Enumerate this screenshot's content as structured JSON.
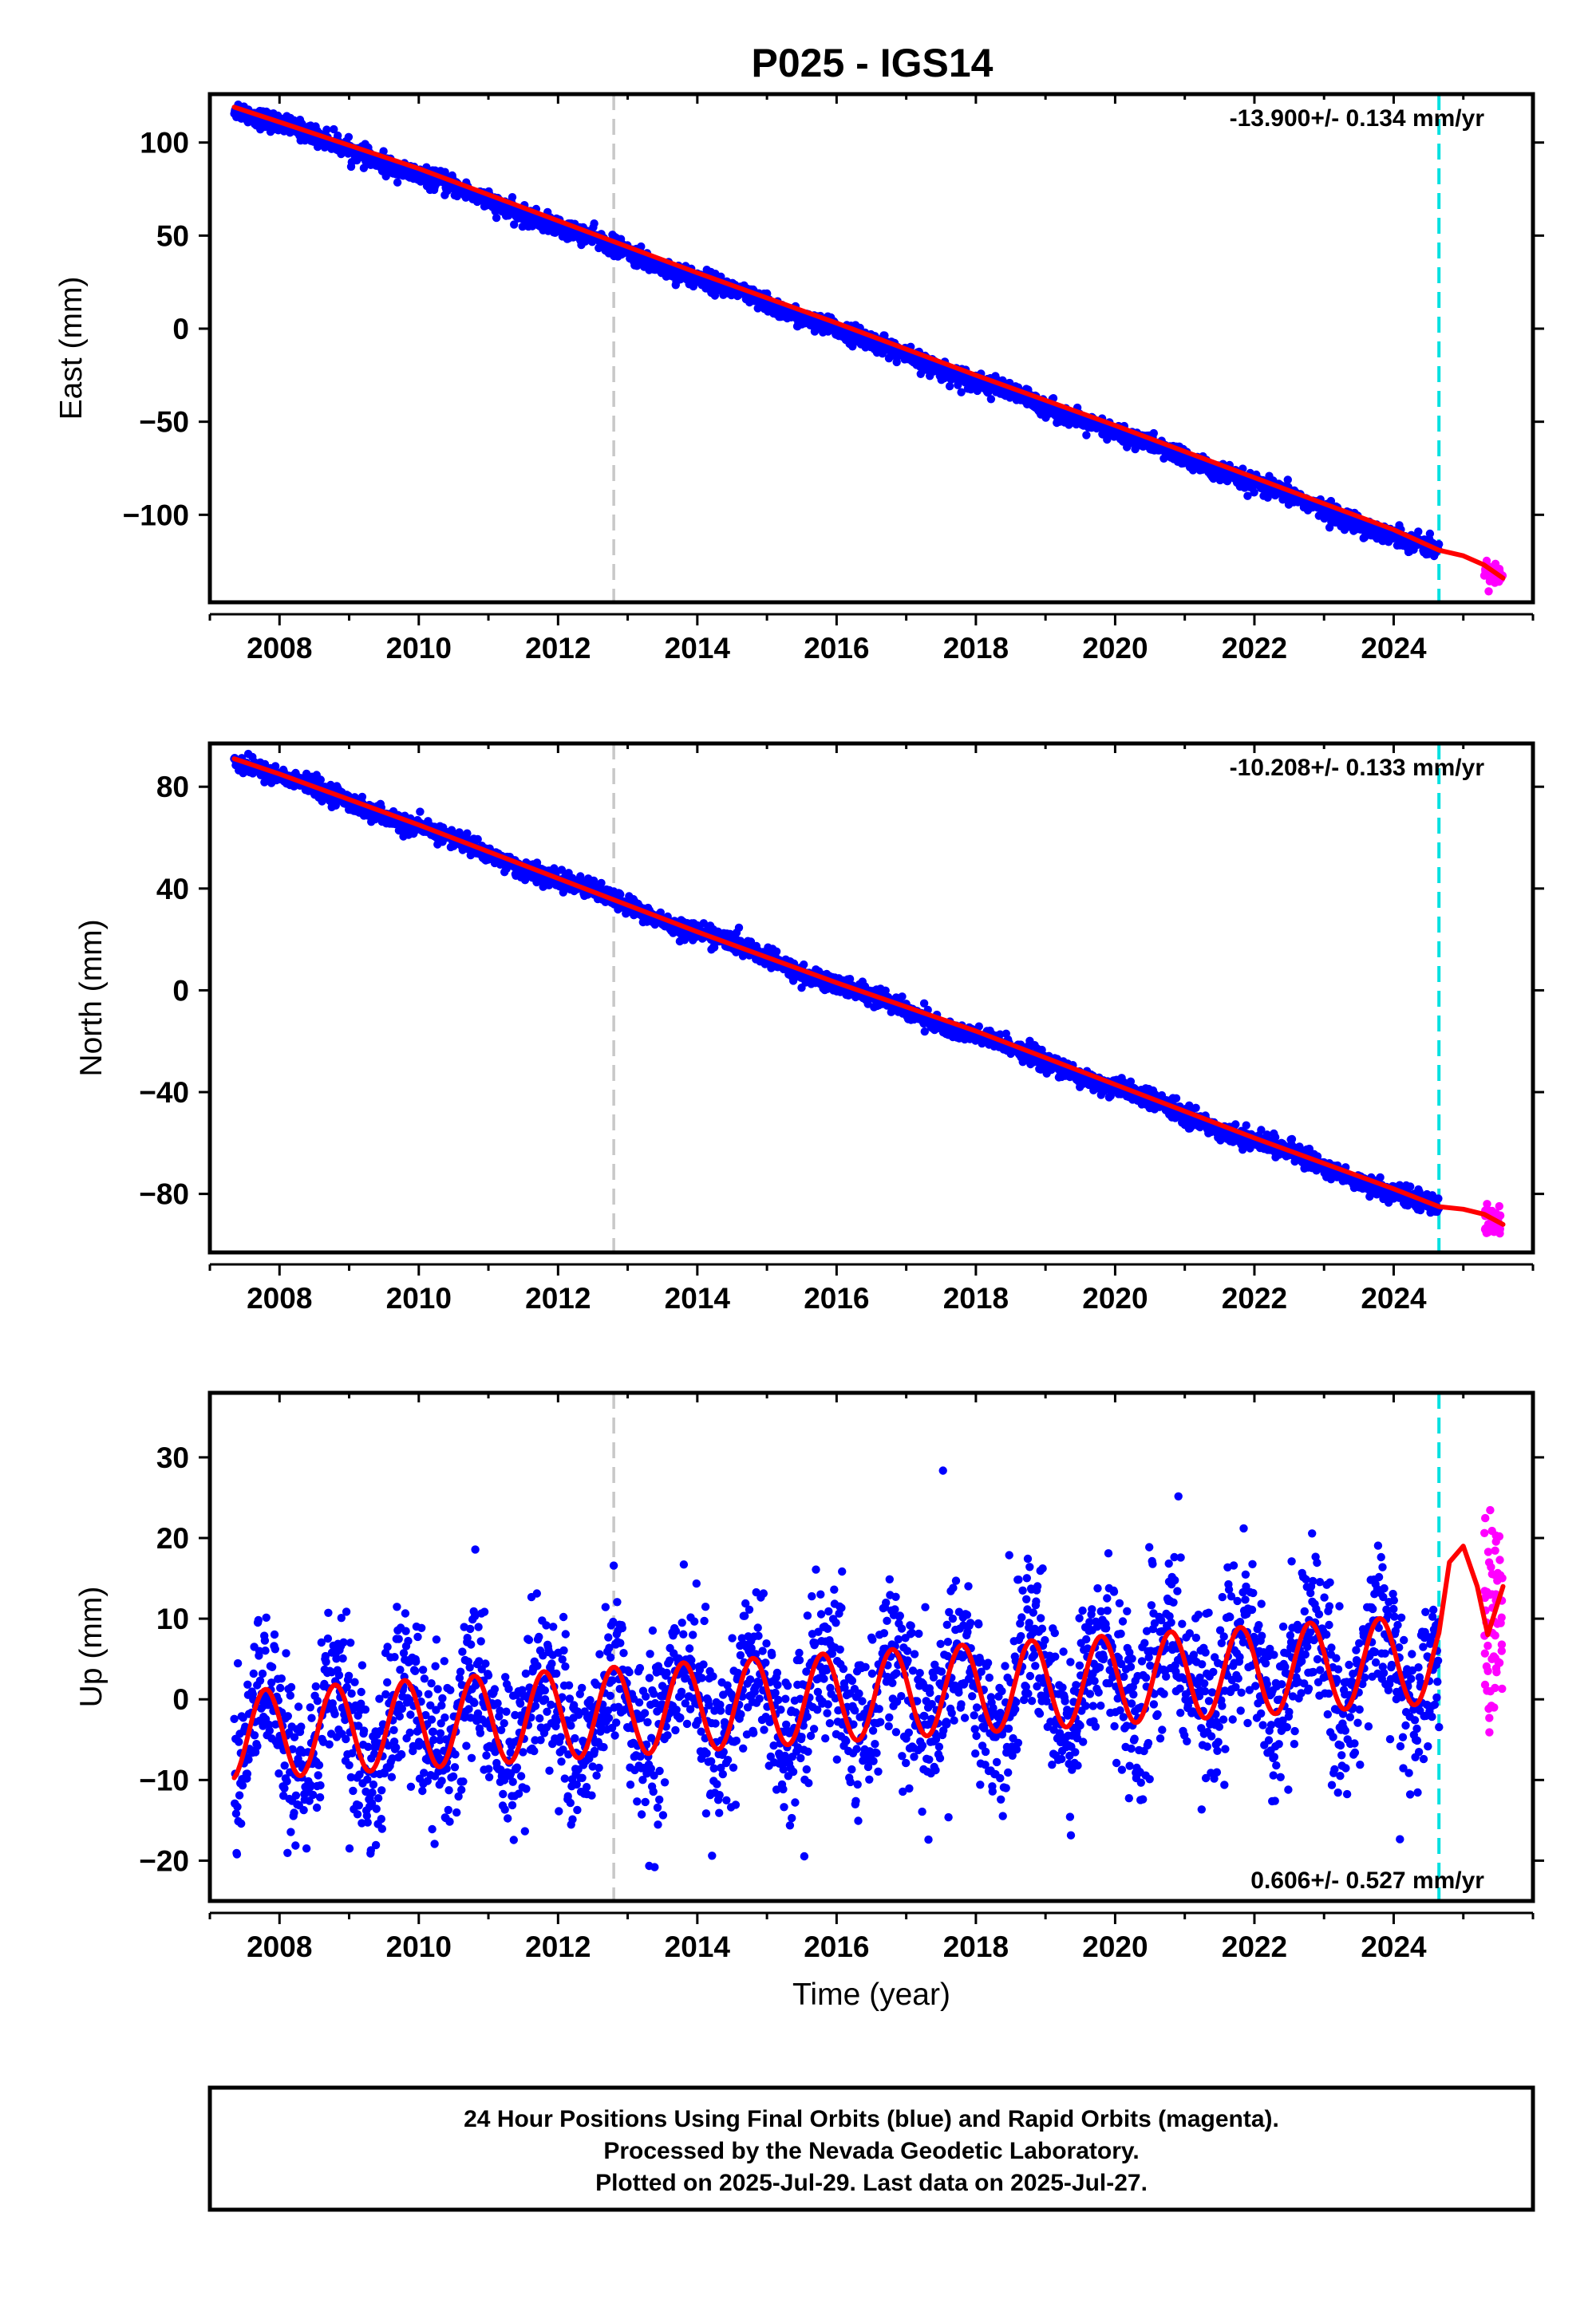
{
  "title": "P025 - IGS14",
  "footer": {
    "line1": "24 Hour Positions Using Final Orbits (blue) and Rapid Orbits (magenta).",
    "line2": "Processed by the Nevada Geodetic Laboratory.",
    "line3": "Plotted on 2025-Jul-29. Last data on 2025-Jul-27."
  },
  "colors": {
    "final_points": "#0000ff",
    "rapid_points": "#ff00ff",
    "model": "#ff0000",
    "gray_line": "#c8c8c8",
    "cyan_line": "#00e0e0",
    "frame": "#000000"
  },
  "chart_data": [
    {
      "type": "scatter",
      "ylabel": "East (mm)",
      "xlabel": "",
      "rate_text": "-13.900+/- 0.134 mm/yr",
      "xlim": [
        2007.0,
        2026.0
      ],
      "ylim": [
        -147,
        126
      ],
      "xticks": [
        2008,
        2010,
        2012,
        2014,
        2016,
        2018,
        2020,
        2022,
        2024
      ],
      "yticks": [
        100,
        50,
        0,
        -50,
        -100
      ],
      "ytick_labels": [
        "100",
        "50",
        "0",
        "−50",
        "−100"
      ],
      "vlines": [
        {
          "x": 2012.8,
          "color": "gray"
        },
        {
          "x": 2024.65,
          "color": "cyan"
        }
      ],
      "final_series": {
        "name": "Final Orbits",
        "x_start": 2007.35,
        "x_end": 2024.65,
        "y_start": 119,
        "y_end": -120,
        "scatter_mm": 2.5
      },
      "rapid_series": {
        "name": "Rapid Orbits",
        "x_start": 2025.3,
        "x_end": 2025.57,
        "y_center": -131,
        "scatter_mm": 3
      },
      "model_curve": {
        "x": [
          2007.35,
          2008.0,
          2010.0,
          2012.0,
          2014.0,
          2016.0,
          2018.0,
          2020.0,
          2022.0,
          2024.0,
          2024.65,
          2025.0,
          2025.3,
          2025.57
        ],
        "y": [
          119,
          111,
          86,
          58,
          30,
          3,
          -25,
          -52,
          -80,
          -108,
          -119,
          -122,
          -127,
          -134
        ]
      }
    },
    {
      "type": "scatter",
      "ylabel": "North (mm)",
      "xlabel": "",
      "rate_text": "-10.208+/- 0.133 mm/yr",
      "xlim": [
        2007.0,
        2026.0
      ],
      "ylim": [
        -103,
        97
      ],
      "xticks": [
        2008,
        2010,
        2012,
        2014,
        2016,
        2018,
        2020,
        2022,
        2024
      ],
      "yticks": [
        80,
        40,
        0,
        -40,
        -80
      ],
      "ytick_labels": [
        "80",
        "40",
        "0",
        "−40",
        "−80"
      ],
      "vlines": [
        {
          "x": 2012.8,
          "color": "gray"
        },
        {
          "x": 2024.65,
          "color": "cyan"
        }
      ],
      "final_series": {
        "name": "Final Orbits",
        "x_start": 2007.35,
        "x_end": 2024.65,
        "y_start": 91,
        "y_end": -86,
        "scatter_mm": 1.8
      },
      "rapid_series": {
        "name": "Rapid Orbits",
        "x_start": 2025.3,
        "x_end": 2025.57,
        "y_center": -91,
        "scatter_mm": 2.5
      },
      "model_curve": {
        "x": [
          2007.35,
          2008.0,
          2010.0,
          2012.0,
          2014.0,
          2016.0,
          2018.0,
          2020.0,
          2022.0,
          2024.0,
          2024.65,
          2025.0,
          2025.3,
          2025.57
        ],
        "y": [
          91,
          85,
          65,
          44,
          23,
          3,
          -16,
          -37,
          -58,
          -78,
          -85,
          -86,
          -88,
          -92
        ]
      }
    },
    {
      "type": "scatter",
      "ylabel": "Up (mm)",
      "xlabel": "Time (year)",
      "rate_text": "0.606+/- 0.527 mm/yr",
      "xlim": [
        2007.0,
        2026.0
      ],
      "ylim": [
        -25,
        38
      ],
      "xticks": [
        2008,
        2010,
        2012,
        2014,
        2016,
        2018,
        2020,
        2022,
        2024
      ],
      "yticks": [
        30,
        20,
        10,
        0,
        -10,
        -20
      ],
      "ytick_labels": [
        "30",
        "20",
        "10",
        "0",
        "−10",
        "−20"
      ],
      "vlines": [
        {
          "x": 2012.8,
          "color": "gray"
        },
        {
          "x": 2024.65,
          "color": "cyan"
        }
      ],
      "final_series": {
        "name": "Final Orbits",
        "x_start": 2007.35,
        "x_end": 2024.65,
        "mean_start": -4.5,
        "mean_end": 5,
        "amplitude": 5.5,
        "phase_peak": 0.8,
        "scatter_mm": 5
      },
      "rapid_series": {
        "name": "Rapid Orbits",
        "x_start": 2025.3,
        "x_end": 2025.57,
        "y_center": 10,
        "scatter_mm": 7
      },
      "model_curve": {
        "x": [
          2024.65,
          2024.8,
          2025.0,
          2025.2,
          2025.35,
          2025.57
        ],
        "y": [
          0,
          17,
          19,
          14,
          8,
          14
        ]
      }
    }
  ]
}
